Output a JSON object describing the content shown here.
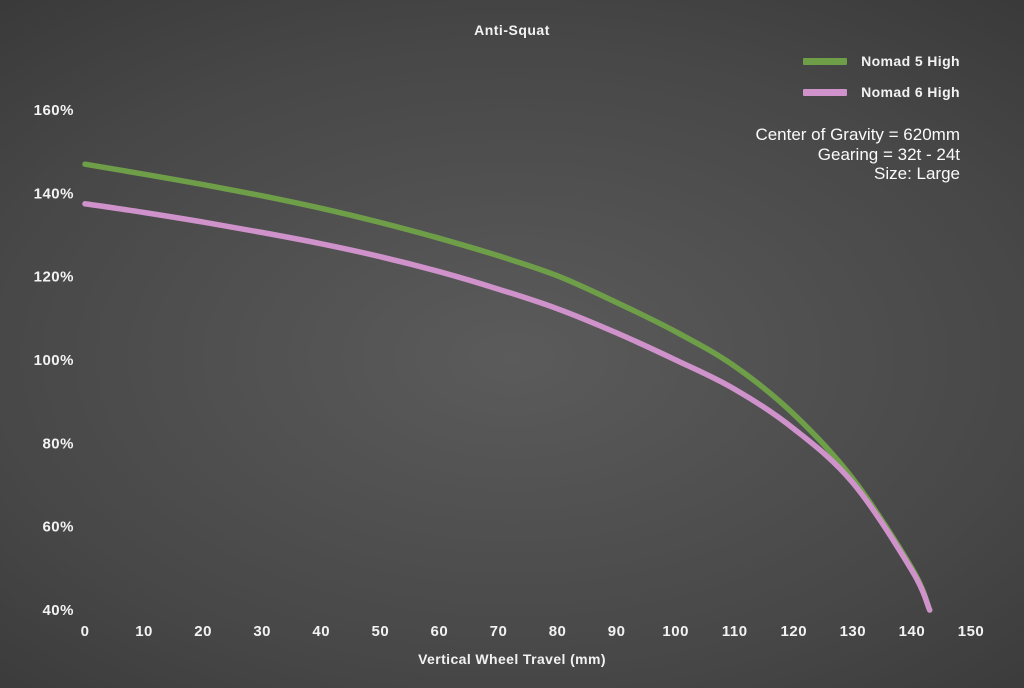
{
  "chart_data": {
    "type": "line",
    "title": "Anti-Squat",
    "xlabel": "Vertical Wheel Travel (mm)",
    "ylabel": "",
    "xlim": [
      0,
      150
    ],
    "ylim": [
      40,
      160
    ],
    "grid": false,
    "legend_position": "top-right",
    "x_ticks": [
      0,
      10,
      20,
      30,
      40,
      50,
      60,
      70,
      80,
      90,
      100,
      110,
      120,
      130,
      140,
      150
    ],
    "y_ticks": [
      160,
      140,
      120,
      100,
      80,
      60,
      40
    ],
    "y_tick_suffix": "%",
    "x": [
      0,
      10,
      20,
      30,
      40,
      50,
      60,
      70,
      80,
      90,
      100,
      110,
      120,
      130,
      140,
      143
    ],
    "series": [
      {
        "name": "Nomad 5 High",
        "color": "#6F9E49",
        "values": [
          147,
          144.6,
          142.1,
          139.4,
          136.4,
          133,
          129.2,
          125,
          120.2,
          113.8,
          106.8,
          98.5,
          87,
          71.5,
          50,
          40
        ]
      },
      {
        "name": "Nomad 6 High",
        "color": "#CF92CB",
        "values": [
          137.5,
          135.4,
          133.1,
          130.6,
          127.9,
          124.8,
          121.2,
          117,
          112.3,
          106.5,
          100,
          93,
          83.5,
          70.5,
          49.5,
          40
        ]
      }
    ],
    "annotations": [
      "Center of Gravity = 620mm",
      "Gearing = 32t - 24t",
      "Size: Large"
    ]
  },
  "colors": {
    "background_center": "#5B5B5B",
    "background_edge": "#1F1F1F",
    "text": "#F2F2F2"
  }
}
